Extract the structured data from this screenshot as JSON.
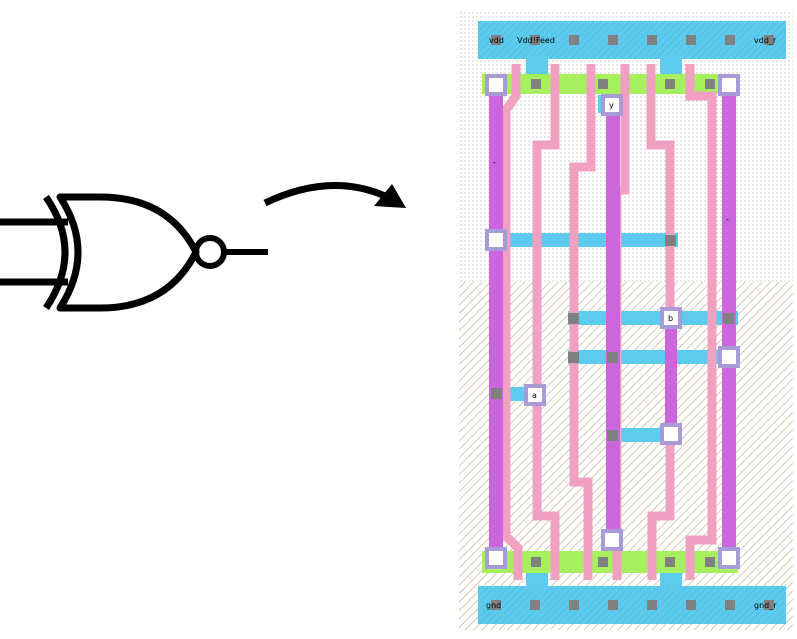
{
  "gate": {
    "type": "XNOR"
  },
  "arrow": {
    "direction": "right"
  },
  "layout": {
    "labels": {
      "vdd_left": "vdd",
      "vdd_feed": "Vdd!Feed",
      "vdd_right": "vdd_r",
      "gnd_left": "gnd",
      "gnd_right": "gnd_r",
      "pin_y": "y",
      "pin_b": "b",
      "pin_a": "a",
      "pin_mark_left": "-",
      "pin_mark_right": "-"
    },
    "colors": {
      "metal1": "#5ccbee",
      "poly": "#f0a0c0",
      "metal2": "#cc66dd",
      "diffusion": "#a6f060",
      "contact": "#808080",
      "via": "#a99bd6",
      "nwell_dots": "#c8c0a8",
      "pwell_hatch": "#b8aa88"
    }
  }
}
